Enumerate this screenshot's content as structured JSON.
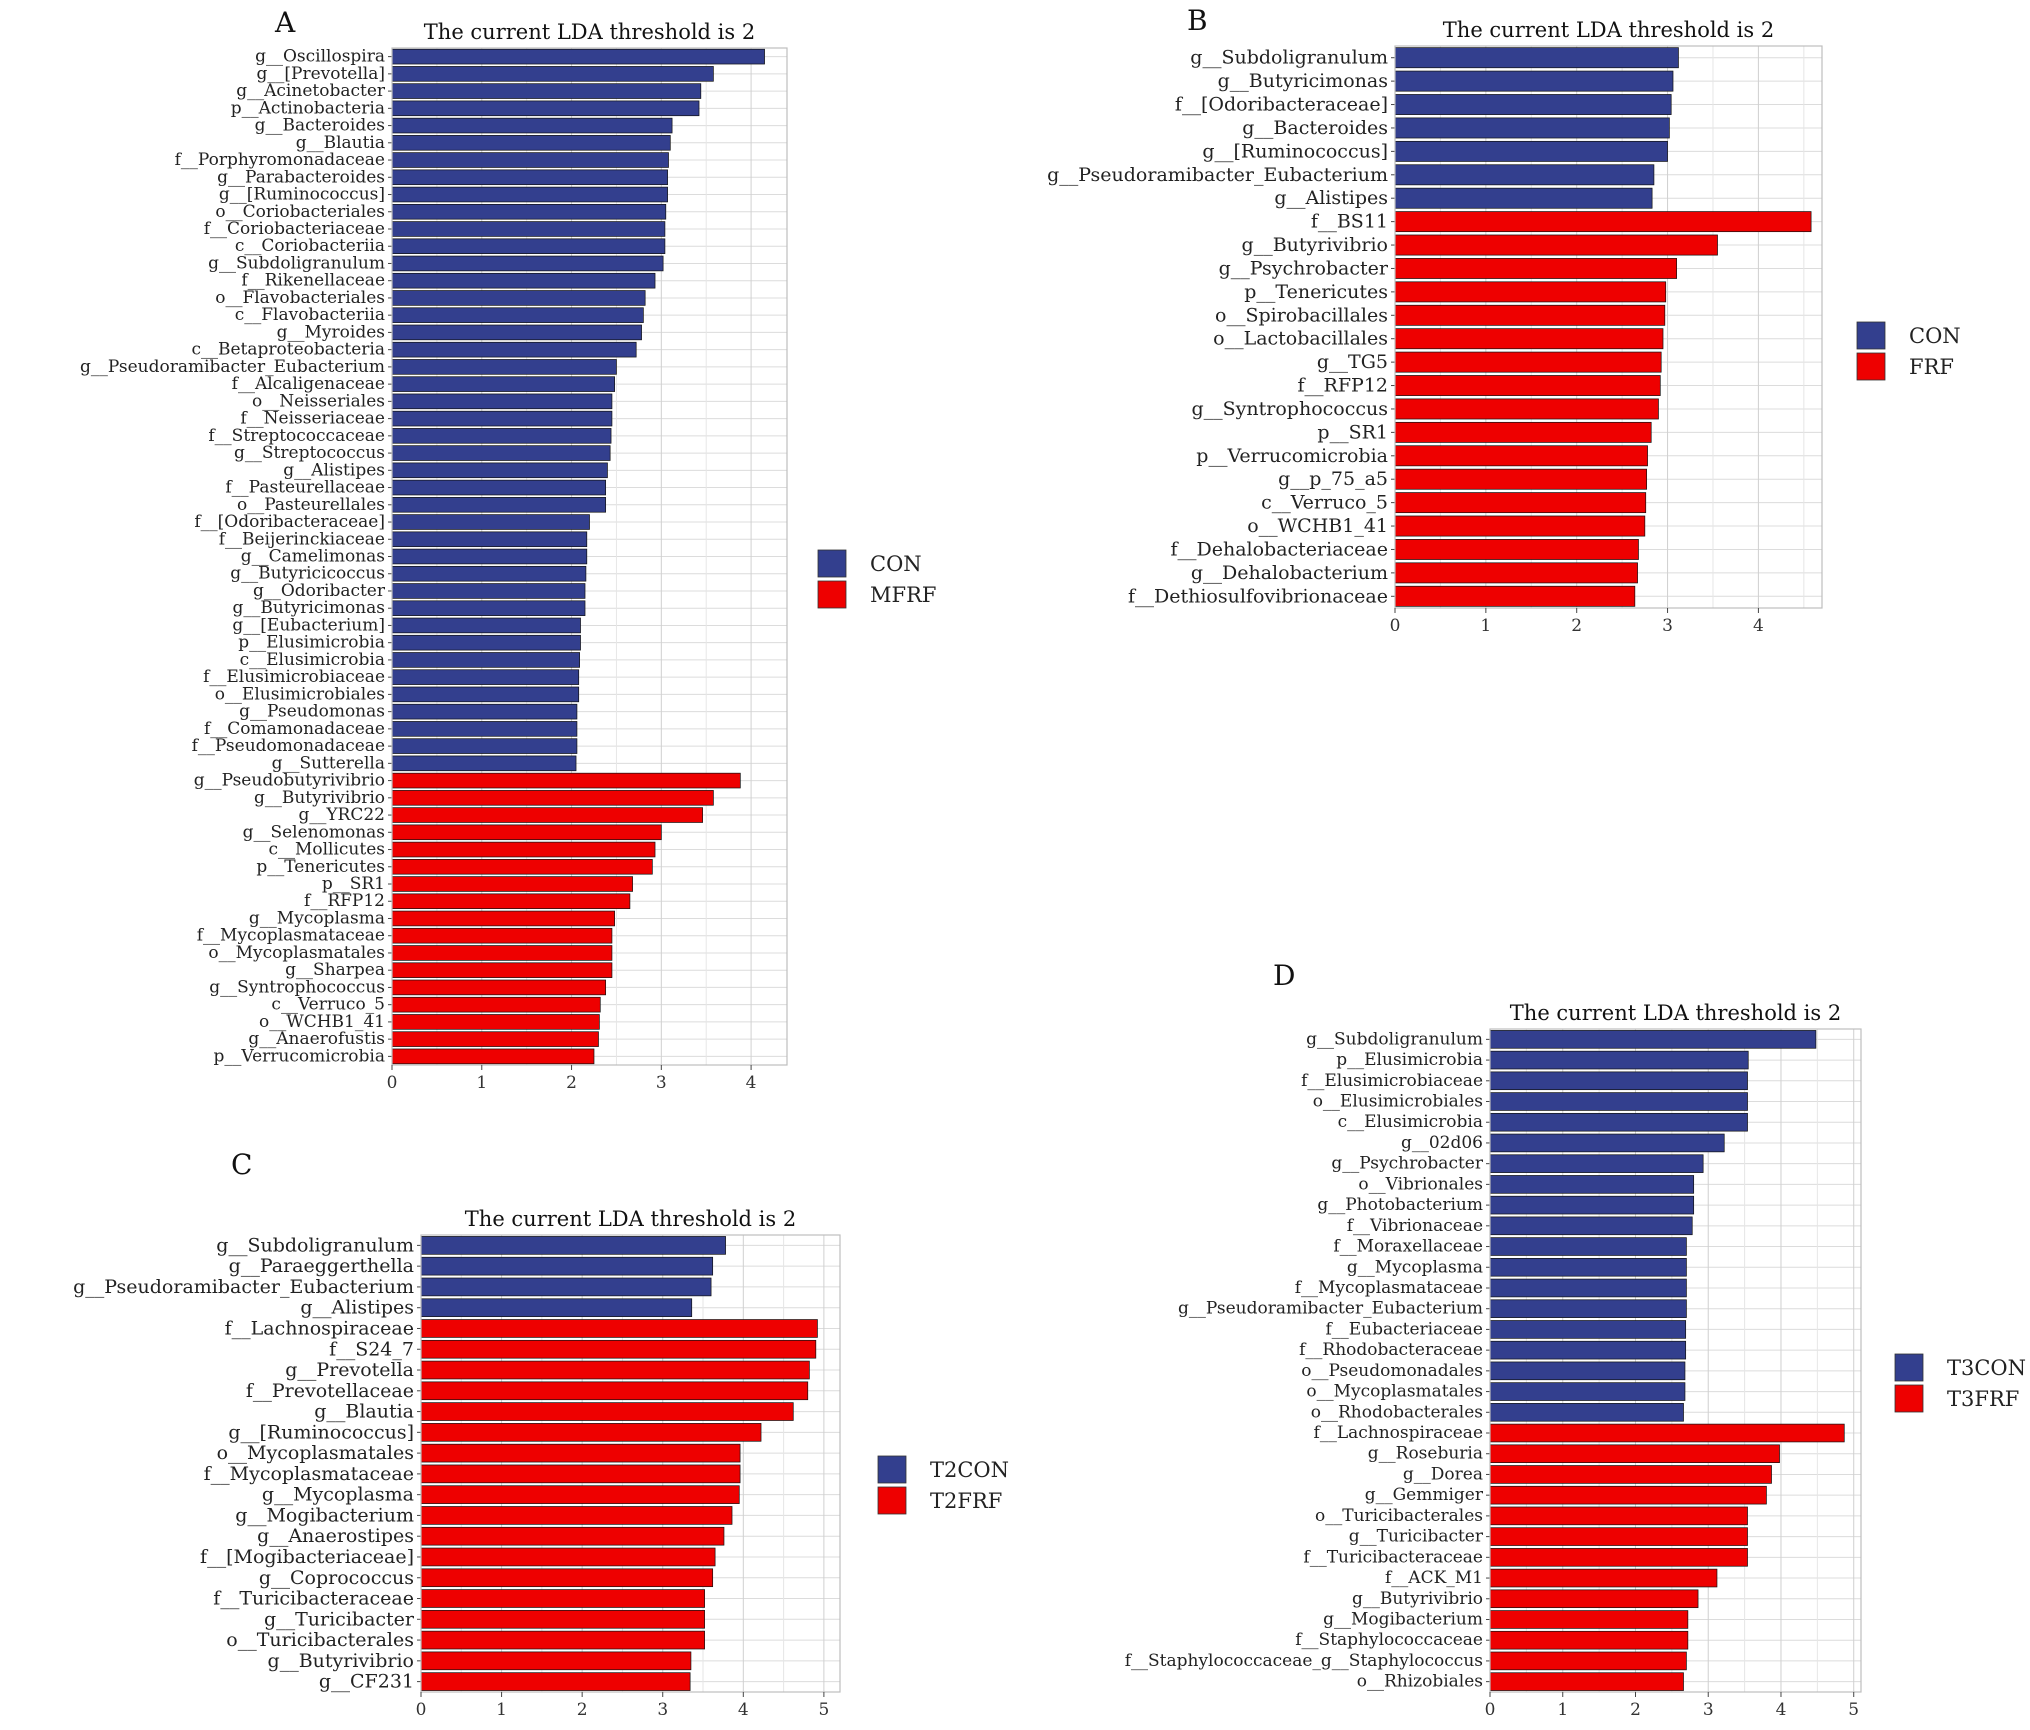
{
  "chart_data": [
    {
      "type": "bar",
      "panel_label": "A",
      "title": "The current LDA threshold is 2",
      "xlim": [
        0,
        4.4
      ],
      "xticks": [
        0,
        1,
        2,
        3,
        4
      ],
      "grid": true,
      "legend_position": "right",
      "legend": [
        {
          "name": "CON",
          "color": "#333F8E"
        },
        {
          "name": "MFRF",
          "color": "#EE0000"
        }
      ],
      "categories": [
        "g__Oscillospira",
        "g__[Prevotella]",
        "g__Acinetobacter",
        "p__Actinobacteria",
        "g__Bacteroides",
        "g__Blautia",
        "f__Porphyromonadaceae",
        "g__Parabacteroides",
        "g__[Ruminococcus]",
        "o__Coriobacteriales",
        "f__Coriobacteriaceae",
        "c__Coriobacteriia",
        "g__Subdoligranulum",
        "f__Rikenellaceae",
        "o__Flavobacteriales",
        "c__Flavobacteriia",
        "g__Myroides",
        "c__Betaproteobacteria",
        "g__Pseudoramibacter_Eubacterium",
        "f__Alcaligenaceae",
        "o__Neisseriales",
        "f__Neisseriaceae",
        "f__Streptococcaceae",
        "g__Streptococcus",
        "g__Alistipes",
        "f__Pasteurellaceae",
        "o__Pasteurellales",
        "f__[Odoribacteraceae]",
        "f__Beijerinckiaceae",
        "g__Camelimonas",
        "g__Butyricicoccus",
        "g__Odoribacter",
        "g__Butyricimonas",
        "g__[Eubacterium]",
        "p__Elusimicrobia",
        "c__Elusimicrobia",
        "f__Elusimicrobiaceae",
        "o__Elusimicrobiales",
        "g__Pseudomonas",
        "f__Comamonadaceae",
        "f__Pseudomonadaceae",
        "g__Sutterella",
        "g__Pseudobutyrivibrio",
        "g__Butyrivibrio",
        "g__YRC22",
        "g__Selenomonas",
        "c__Mollicutes",
        "p__Tenericutes",
        "p__SR1",
        "f__RFP12",
        "g__Mycoplasma",
        "f__Mycoplasmataceae",
        "o__Mycoplasmatales",
        "g__Sharpea",
        "g__Syntrophococcus",
        "c__Verruco_5",
        "o__WCHB1_41",
        "g__Anaerofustis",
        "p__Verrucomicrobia"
      ],
      "values": [
        4.15,
        3.58,
        3.44,
        3.42,
        3.12,
        3.1,
        3.08,
        3.07,
        3.07,
        3.05,
        3.04,
        3.04,
        3.02,
        2.93,
        2.82,
        2.8,
        2.78,
        2.72,
        2.5,
        2.48,
        2.45,
        2.45,
        2.44,
        2.43,
        2.4,
        2.38,
        2.38,
        2.2,
        2.17,
        2.17,
        2.16,
        2.15,
        2.15,
        2.1,
        2.1,
        2.09,
        2.08,
        2.08,
        2.06,
        2.06,
        2.06,
        2.05,
        3.88,
        3.58,
        3.46,
        3.0,
        2.93,
        2.9,
        2.68,
        2.65,
        2.48,
        2.45,
        2.45,
        2.45,
        2.38,
        2.32,
        2.31,
        2.3,
        2.25
      ],
      "groups": [
        "CON",
        "CON",
        "CON",
        "CON",
        "CON",
        "CON",
        "CON",
        "CON",
        "CON",
        "CON",
        "CON",
        "CON",
        "CON",
        "CON",
        "CON",
        "CON",
        "CON",
        "CON",
        "CON",
        "CON",
        "CON",
        "CON",
        "CON",
        "CON",
        "CON",
        "CON",
        "CON",
        "CON",
        "CON",
        "CON",
        "CON",
        "CON",
        "CON",
        "CON",
        "CON",
        "CON",
        "CON",
        "CON",
        "CON",
        "CON",
        "CON",
        "CON",
        "MFRF",
        "MFRF",
        "MFRF",
        "MFRF",
        "MFRF",
        "MFRF",
        "MFRF",
        "MFRF",
        "MFRF",
        "MFRF",
        "MFRF",
        "MFRF",
        "MFRF",
        "MFRF",
        "MFRF",
        "MFRF",
        "MFRF"
      ]
    },
    {
      "type": "bar",
      "panel_label": "B",
      "title": "The current LDA threshold is 2",
      "xlim": [
        0,
        4.7
      ],
      "xticks": [
        0,
        1,
        2,
        3,
        4
      ],
      "grid": true,
      "legend_position": "right",
      "legend": [
        {
          "name": "CON",
          "color": "#333F8E"
        },
        {
          "name": "FRF",
          "color": "#EE0000"
        }
      ],
      "categories": [
        "g__Subdoligranulum",
        "g__Butyricimonas",
        "f__[Odoribacteraceae]",
        "g__Bacteroides",
        "g__[Ruminococcus]",
        "g__Pseudoramibacter_Eubacterium",
        "g__Alistipes",
        "f__BS11",
        "g__Butyrivibrio",
        "g__Psychrobacter",
        "p__Tenericutes",
        "o__Spirobacillales",
        "o__Lactobacillales",
        "g__TG5",
        "f__RFP12",
        "g__Syntrophococcus",
        "p__SR1",
        "p__Verrucomicrobia",
        "g__p_75_a5",
        "c__Verruco_5",
        "o__WCHB1_41",
        "f__Dehalobacteriaceae",
        "g__Dehalobacterium",
        "f__Dethiosulfovibrionaceae"
      ],
      "values": [
        3.12,
        3.06,
        3.04,
        3.02,
        3.0,
        2.85,
        2.83,
        4.58,
        3.55,
        3.1,
        2.98,
        2.97,
        2.95,
        2.93,
        2.92,
        2.9,
        2.82,
        2.78,
        2.77,
        2.76,
        2.75,
        2.68,
        2.67,
        2.64
      ],
      "groups": [
        "CON",
        "CON",
        "CON",
        "CON",
        "CON",
        "CON",
        "CON",
        "FRF",
        "FRF",
        "FRF",
        "FRF",
        "FRF",
        "FRF",
        "FRF",
        "FRF",
        "FRF",
        "FRF",
        "FRF",
        "FRF",
        "FRF",
        "FRF",
        "FRF",
        "FRF",
        "FRF"
      ]
    },
    {
      "type": "bar",
      "panel_label": "C",
      "title": "The current LDA threshold is 2",
      "xlim": [
        0,
        5.2
      ],
      "xticks": [
        0,
        1,
        2,
        3,
        4,
        5
      ],
      "grid": true,
      "legend_position": "right",
      "legend": [
        {
          "name": "T2CON",
          "color": "#333F8E"
        },
        {
          "name": "T2FRF",
          "color": "#EE0000"
        }
      ],
      "categories": [
        "g__Subdoligranulum",
        "g__Paraeggerthella",
        "g__Pseudoramibacter_Eubacterium",
        "g__Alistipes",
        "f__Lachnospiraceae",
        "f__S24_7",
        "g__Prevotella",
        "f__Prevotellaceae",
        "g__Blautia",
        "g__[Ruminococcus]",
        "o__Mycoplasmatales",
        "f__Mycoplasmataceae",
        "g__Mycoplasma",
        "g__Mogibacterium",
        "g__Anaerostipes",
        "f__[Mogibacteriaceae]",
        "g__Coprococcus",
        "f__Turicibacteraceae",
        "g__Turicibacter",
        "o__Turicibacterales",
        "g__Butyrivibrio",
        "g__CF231"
      ],
      "values": [
        3.78,
        3.62,
        3.6,
        3.36,
        4.92,
        4.9,
        4.82,
        4.8,
        4.62,
        4.22,
        3.96,
        3.96,
        3.95,
        3.86,
        3.76,
        3.65,
        3.62,
        3.52,
        3.52,
        3.52,
        3.35,
        3.34
      ],
      "groups": [
        "T2CON",
        "T2CON",
        "T2CON",
        "T2CON",
        "T2FRF",
        "T2FRF",
        "T2FRF",
        "T2FRF",
        "T2FRF",
        "T2FRF",
        "T2FRF",
        "T2FRF",
        "T2FRF",
        "T2FRF",
        "T2FRF",
        "T2FRF",
        "T2FRF",
        "T2FRF",
        "T2FRF",
        "T2FRF",
        "T2FRF",
        "T2FRF"
      ]
    },
    {
      "type": "bar",
      "panel_label": "D",
      "title": "The current LDA threshold is 2",
      "xlim": [
        0,
        5.1
      ],
      "xticks": [
        0,
        1,
        2,
        3,
        4,
        5
      ],
      "grid": true,
      "legend_position": "right",
      "legend": [
        {
          "name": "T3CON",
          "color": "#333F8E"
        },
        {
          "name": "T3FRF",
          "color": "#EE0000"
        }
      ],
      "categories": [
        "g__Subdoligranulum",
        "p__Elusimicrobia",
        "f__Elusimicrobiaceae",
        "o__Elusimicrobiales",
        "c__Elusimicrobia",
        "g__02d06",
        "g__Psychrobacter",
        "o__Vibrionales",
        "g__Photobacterium",
        "f__Vibrionaceae",
        "f__Moraxellaceae",
        "g__Mycoplasma",
        "f__Mycoplasmataceae",
        "g__Pseudoramibacter_Eubacterium",
        "f__Eubacteriaceae",
        "f__Rhodobacteraceae",
        "o__Pseudomonadales",
        "o__Mycoplasmatales",
        "o__Rhodobacterales",
        "f__Lachnospiraceae",
        "g__Roseburia",
        "g__Dorea",
        "g__Gemmiger",
        "o__Turicibacterales",
        "g__Turicibacter",
        "f__Turicibacteraceae",
        "f__ACK_M1",
        "g__Butyrivibrio",
        "g__Mogibacterium",
        "f__Staphylococcaceae",
        "f__Staphylococcaceae_g__Staphylococcus",
        "o__Rhizobiales"
      ],
      "values": [
        4.48,
        3.55,
        3.54,
        3.54,
        3.54,
        3.22,
        2.93,
        2.8,
        2.8,
        2.78,
        2.7,
        2.7,
        2.7,
        2.7,
        2.69,
        2.69,
        2.68,
        2.68,
        2.66,
        4.87,
        3.98,
        3.87,
        3.8,
        3.54,
        3.54,
        3.54,
        3.12,
        2.86,
        2.72,
        2.72,
        2.7,
        2.66
      ],
      "groups": [
        "T3CON",
        "T3CON",
        "T3CON",
        "T3CON",
        "T3CON",
        "T3CON",
        "T3CON",
        "T3CON",
        "T3CON",
        "T3CON",
        "T3CON",
        "T3CON",
        "T3CON",
        "T3CON",
        "T3CON",
        "T3CON",
        "T3CON",
        "T3CON",
        "T3CON",
        "T3FRF",
        "T3FRF",
        "T3FRF",
        "T3FRF",
        "T3FRF",
        "T3FRF",
        "T3FRF",
        "T3FRF",
        "T3FRF",
        "T3FRF",
        "T3FRF",
        "T3FRF",
        "T3FRF"
      ]
    }
  ]
}
